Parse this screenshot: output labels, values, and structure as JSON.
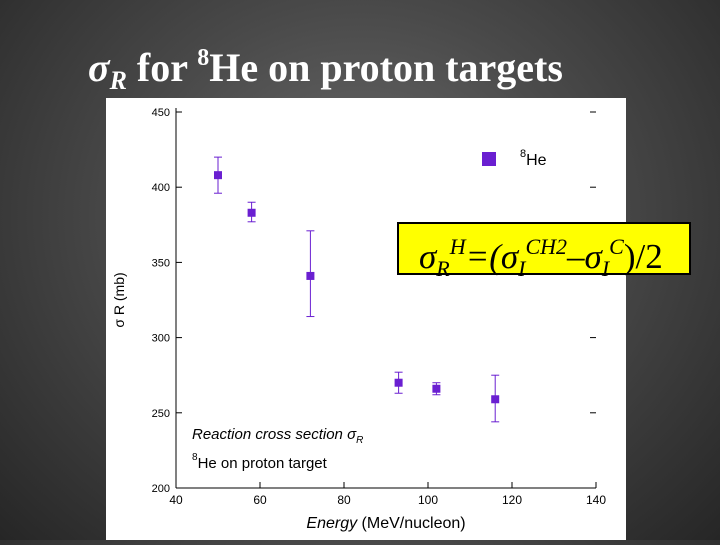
{
  "slide": {
    "title_symbol": "σ",
    "title_subscript": "R",
    "title_for": " for ",
    "title_isotope_mass": "8",
    "title_rest": "He on proton targets"
  },
  "formula": {
    "sigma1": "σ",
    "sub1": "R",
    "sup1": "H",
    "eq": "=(σ",
    "sub2": "I",
    "sup2": "CH2",
    "minus": "–σ",
    "sub3": "I",
    "sup3": "C",
    "tail": ")/2"
  },
  "chart_data": {
    "type": "scatter",
    "xlabel": "Energy (MeV/nucleon)",
    "ylabel": "σ R (mb)",
    "xlim": [
      40,
      140
    ],
    "ylim": [
      200,
      450
    ],
    "x_ticks": [
      "40",
      "60",
      "80",
      "100",
      "120",
      "140"
    ],
    "y_ticks": [
      "200",
      "250",
      "300",
      "350",
      "400",
      "450"
    ],
    "legend": {
      "mass": "8",
      "label": "He",
      "position": "top-right"
    },
    "annotation": {
      "line1": "Reaction cross section σ",
      "line1_sub": "R",
      "line2_mass": "8",
      "line2": "He  on proton target"
    },
    "series": [
      {
        "name": "8He",
        "color": "#6a1fd1",
        "points": [
          {
            "x": 50,
            "y": 408,
            "ylo": 396,
            "yhi": 420
          },
          {
            "x": 58,
            "y": 383,
            "ylo": 377,
            "yhi": 390
          },
          {
            "x": 72,
            "y": 341,
            "ylo": 314,
            "yhi": 371
          },
          {
            "x": 93,
            "y": 270,
            "ylo": 263,
            "yhi": 277
          },
          {
            "x": 102,
            "y": 266,
            "ylo": 262,
            "yhi": 270
          },
          {
            "x": 116,
            "y": 259,
            "ylo": 244,
            "yhi": 275
          }
        ]
      }
    ],
    "grid": false
  }
}
